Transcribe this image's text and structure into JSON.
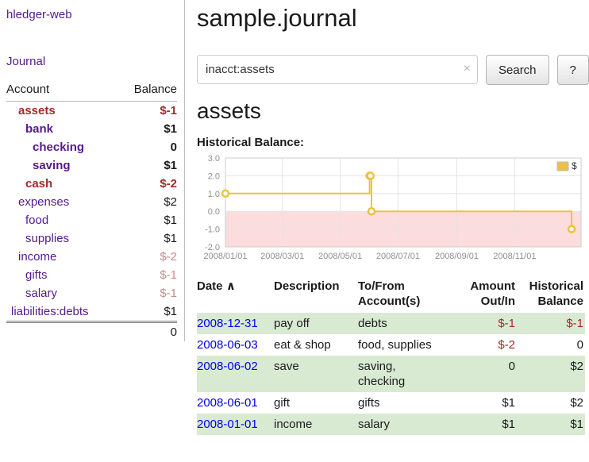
{
  "colors": {
    "link_purple": "#551a8b",
    "link_blue": "#0000ee",
    "negative": "#a22b2b",
    "negative_light": "#ca8a8a",
    "row_green": "#d9ead3",
    "chart_line": "#edc240",
    "chart_negative_region": "#fcdcdc",
    "chart_grid": "#e4e4e4",
    "chart_tick_text": "#8f8f8f"
  },
  "sidebar": {
    "app_title": "hledger-web",
    "journal_link": "Journal",
    "accounts": {
      "header_account": "Account",
      "header_balance": "Balance",
      "rows": [
        {
          "name": "assets",
          "balance": "$-1",
          "depth": 1,
          "bold": true,
          "name_style": "negative",
          "balance_style": "negative"
        },
        {
          "name": "bank",
          "balance": "$1",
          "depth": 2,
          "bold": true,
          "name_style": "link",
          "balance_style": "normal"
        },
        {
          "name": "checking",
          "balance": "0",
          "depth": 3,
          "bold": true,
          "name_style": "link",
          "balance_style": "normal"
        },
        {
          "name": "saving",
          "balance": "$1",
          "depth": 3,
          "bold": true,
          "name_style": "link",
          "balance_style": "normal"
        },
        {
          "name": "cash",
          "balance": "$-2",
          "depth": 2,
          "bold": true,
          "name_style": "negative",
          "balance_style": "negative"
        },
        {
          "name": "expenses",
          "balance": "$2",
          "depth": 1,
          "bold": false,
          "name_style": "link",
          "balance_style": "normal"
        },
        {
          "name": "food",
          "balance": "$1",
          "depth": 2,
          "bold": false,
          "name_style": "link",
          "balance_style": "normal"
        },
        {
          "name": "supplies",
          "balance": "$1",
          "depth": 2,
          "bold": false,
          "name_style": "link",
          "balance_style": "normal"
        },
        {
          "name": "income",
          "balance": "$-2",
          "depth": 1,
          "bold": false,
          "name_style": "link",
          "balance_style": "negative_light"
        },
        {
          "name": "gifts",
          "balance": "$-1",
          "depth": 2,
          "bold": false,
          "name_style": "link",
          "balance_style": "negative_light"
        },
        {
          "name": "salary",
          "balance": "$-1",
          "depth": 2,
          "bold": false,
          "name_style": "link",
          "balance_style": "negative_light"
        },
        {
          "name": "liabilities:debts",
          "balance": "$1",
          "depth": 0,
          "bold": false,
          "name_style": "link",
          "balance_style": "normal"
        }
      ],
      "total": "0"
    }
  },
  "main": {
    "page_title": "sample.journal",
    "search": {
      "value": "inacct:assets",
      "clear_icon": "×",
      "search_button": "Search",
      "help_button": "?"
    },
    "account_heading": "assets",
    "chart_title": "Historical Balance:",
    "register": {
      "headers": {
        "date": "Date",
        "date_sort_icon": "∧",
        "description": "Description",
        "account": "To/From Account(s)",
        "amount": "Amount Out/In",
        "balance": "Historical Balance"
      },
      "rows": [
        {
          "date": "2008-12-31",
          "description": "pay off",
          "accounts": "debts",
          "amount": "$-1",
          "amount_negative": true,
          "balance": "$-1",
          "balance_negative": true,
          "shaded": true
        },
        {
          "date": "2008-06-03",
          "description": "eat & shop",
          "accounts": "food, supplies",
          "amount": "$-2",
          "amount_negative": true,
          "balance": "0",
          "balance_negative": false,
          "shaded": false
        },
        {
          "date": "2008-06-02",
          "description": "save",
          "accounts": "saving,\nchecking",
          "amount": "0",
          "amount_negative": false,
          "balance": "$2",
          "balance_negative": false,
          "shaded": true
        },
        {
          "date": "2008-06-01",
          "description": "gift",
          "accounts": "gifts",
          "amount": "$1",
          "amount_negative": false,
          "balance": "$2",
          "balance_negative": false,
          "shaded": false
        },
        {
          "date": "2008-01-01",
          "description": "income",
          "accounts": "salary",
          "amount": "$1",
          "amount_negative": false,
          "balance": "$1",
          "balance_negative": false,
          "shaded": true
        }
      ]
    }
  },
  "chart_data": {
    "type": "line",
    "step": true,
    "title": "Historical Balance:",
    "series": [
      {
        "name": "$",
        "points": [
          {
            "x": "2008-01-01",
            "y": 1
          },
          {
            "x": "2008-06-01",
            "y": 2
          },
          {
            "x": "2008-06-02",
            "y": 2
          },
          {
            "x": "2008-06-03",
            "y": 0
          },
          {
            "x": "2008-12-31",
            "y": -1
          }
        ]
      }
    ],
    "xrange": [
      "2008-01-01",
      "2009-01-10"
    ],
    "ylim": [
      -2,
      3
    ],
    "yticks": [
      3,
      2,
      1,
      0,
      -1,
      -2
    ],
    "ytick_labels": [
      "3.0",
      "2.0",
      "1.0",
      "0.0",
      "-1.0",
      "-2.0"
    ],
    "xticks": [
      "2008-01-01",
      "2008-03-01",
      "2008-05-01",
      "2008-07-01",
      "2008-09-01",
      "2008-11-01"
    ],
    "xtick_labels": [
      "2008/01/01",
      "2008/03/01",
      "2008/05/01",
      "2008/07/01",
      "2008/09/01",
      "2008/11/01"
    ],
    "legend": "$",
    "legend_position": "top-right",
    "grid": true
  }
}
